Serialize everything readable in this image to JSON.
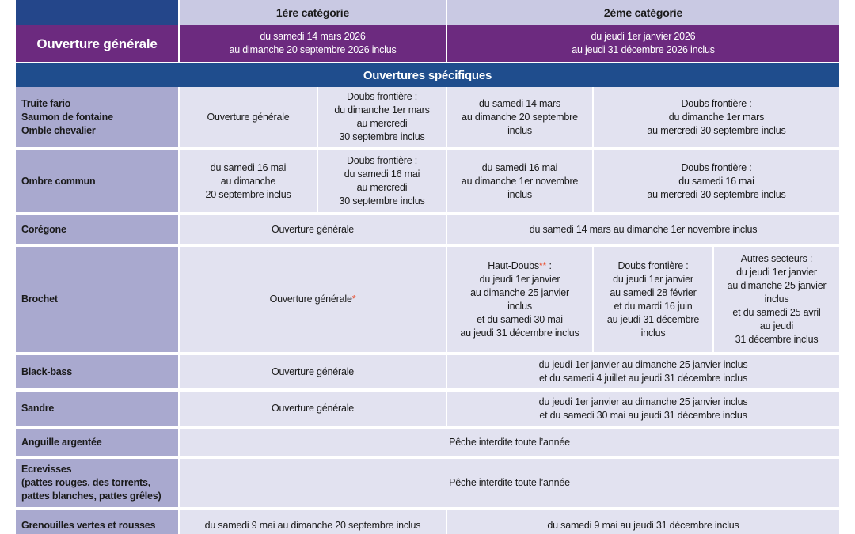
{
  "header": {
    "col1": "1ère catégorie",
    "col2": "2ème catégorie"
  },
  "general": {
    "label": "Ouverture générale",
    "col1": "du samedi 14 mars 2026\nau dimanche 20 septembre 2026 inclus",
    "col2": "du jeudi 1er janvier 2026\nau jeudi 31 décembre 2026 inclus"
  },
  "section": "Ouvertures spécifiques",
  "rows": [
    {
      "label": "Truite fario\nSaumon de fontaine\nOmble chevalier",
      "cells": [
        "Ouverture générale",
        "Doubs frontière :\ndu dimanche 1er mars\nau mercredi\n30 septembre inclus",
        "du samedi 14 mars\nau dimanche 20 septembre\ninclus",
        "Doubs frontière :\ndu dimanche 1er mars\nau mercredi 30 septembre inclus"
      ]
    },
    {
      "label": "Ombre commun",
      "cells": [
        "du samedi 16 mai\nau dimanche\n20 septembre inclus",
        "Doubs frontière :\ndu samedi 16 mai\nau mercredi\n30 septembre inclus",
        "du samedi 16 mai\nau dimanche 1er novembre\ninclus",
        "Doubs frontière :\ndu samedi 16 mai\nau mercredi 30 septembre inclus"
      ]
    },
    {
      "label": "Corégone",
      "cells": [
        "Ouverture générale",
        "du samedi 14 mars au dimanche 1er novembre inclus"
      ]
    },
    {
      "label": "Brochet",
      "cells": [
        {
          "parts": [
            {
              "text": "Ouverture générale"
            },
            {
              "text": "*",
              "note": true
            }
          ]
        },
        {
          "parts": [
            {
              "text": "Haut-Doubs"
            },
            {
              "text": "**",
              "note": true
            },
            {
              "text": " :\ndu jeudi 1er janvier\nau dimanche 25 janvier\ninclus\net du samedi 30 mai\nau jeudi 31 décembre inclus"
            }
          ]
        },
        "Doubs frontière :\ndu jeudi 1er janvier\nau samedi 28 février\net du mardi 16 juin\nau jeudi 31 décembre\ninclus",
        "Autres secteurs :\ndu jeudi 1er janvier\nau dimanche 25 janvier\ninclus\net du samedi 25 avril\nau jeudi\n31 décembre inclus"
      ]
    },
    {
      "label": "Black-bass",
      "cells": [
        "Ouverture générale",
        "du jeudi 1er janvier au dimanche 25 janvier inclus\net du samedi 4 juillet au jeudi 31 décembre inclus"
      ]
    },
    {
      "label": "Sandre",
      "cells": [
        "Ouverture générale",
        "du jeudi 1er janvier au dimanche 25 janvier inclus\net du samedi 30 mai au jeudi 31 décembre inclus"
      ]
    },
    {
      "label": "Anguille argentée",
      "cells": [
        "Pêche interdite toute l’année"
      ]
    },
    {
      "label": "Ecrevisses\n(pattes rouges, des torrents,\npattes blanches, pattes grêles)",
      "cells": [
        "Pêche interdite toute l’année"
      ]
    },
    {
      "label": "Grenouilles vertes et rousses",
      "cells": [
        "du samedi 9 mai au dimanche 20 septembre inclus",
        "du samedi 9 mai au jeudi 31 décembre inclus"
      ]
    }
  ]
}
